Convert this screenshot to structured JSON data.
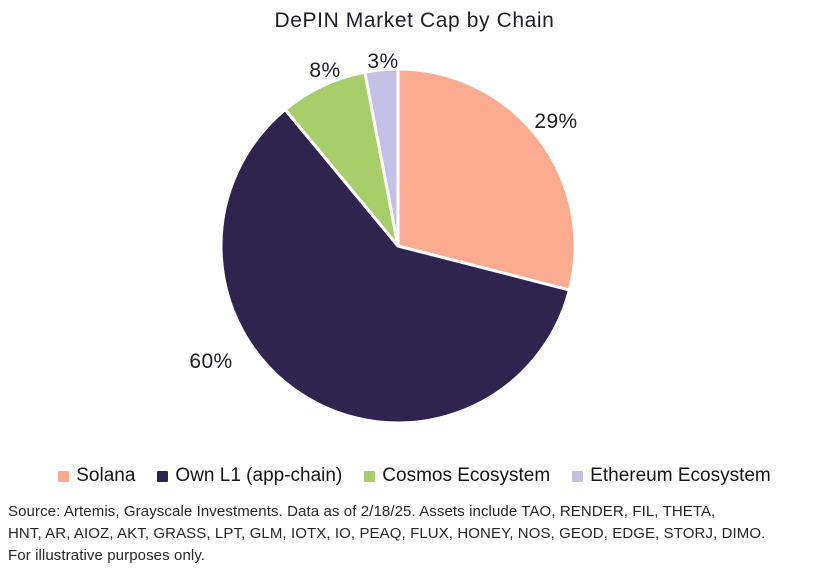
{
  "chart_data": {
    "type": "pie",
    "title": "DePIN Market Cap by Chain",
    "labels": [
      "Solana",
      "Own L1 (app-chain)",
      "Cosmos Ecosystem",
      "Ethereum Ecosystem"
    ],
    "values": [
      29,
      60,
      8,
      3
    ],
    "value_labels": [
      "29%",
      "60%",
      "8%",
      "3%"
    ],
    "colors": [
      "#FBAB8F",
      "#2F2350",
      "#A9CD6A",
      "#C4BFE4"
    ],
    "start_angle": "top",
    "direction": "clockwise",
    "slice_border_color": "#FFFFFF",
    "legend_position": "bottom",
    "background_color": "#FFFFFF"
  },
  "source": {
    "lines": [
      "Source: Artemis, Grayscale Investments. Data as of 2/18/25. Assets include TAO, RENDER, FIL, THETA,",
      "HNT, AR, AIOZ, AKT, GRASS, LPT, GLM, IOTX, IO, PEAQ, FLUX, HONEY, NOS, GEOD, EDGE, STORJ, DIMO.",
      "For illustrative purposes only."
    ]
  }
}
